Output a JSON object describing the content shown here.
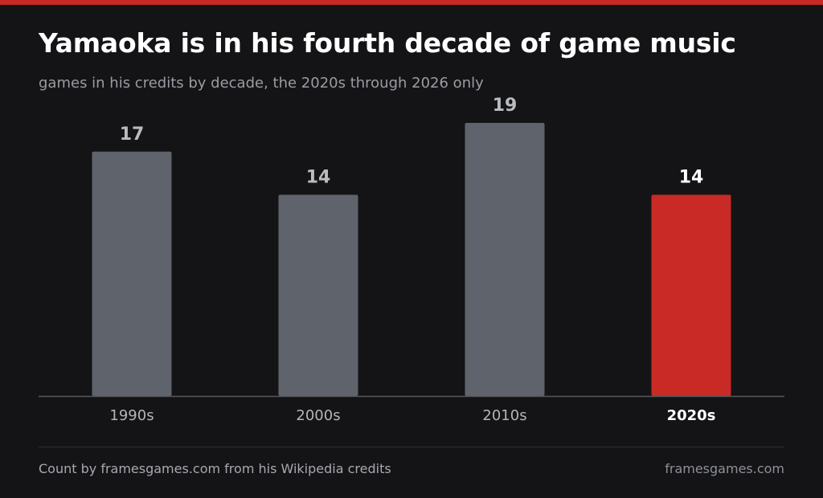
{
  "colors": {
    "background": "#141416",
    "accent": "#c92a25",
    "bar_default": "#5f636b",
    "value_label_default": "#b9bbc0",
    "value_label_highlight": "#ffffff",
    "axis": "#56585e"
  },
  "chart_data": {
    "type": "bar",
    "title": "Yamaoka is in his fourth decade of game music",
    "subtitle": "games in his credits by decade, the 2020s through 2026 only",
    "categories": [
      "1990s",
      "2000s",
      "2010s",
      "2020s"
    ],
    "values": [
      17,
      14,
      19,
      14
    ],
    "highlight": "2020s",
    "xlabel": "",
    "ylabel": "",
    "ylim": [
      0,
      19
    ],
    "grid": false,
    "data_labels": true
  },
  "footer": {
    "source": "Count by framesgames.com from his Wikipedia credits",
    "brand": "framesgames.com"
  }
}
